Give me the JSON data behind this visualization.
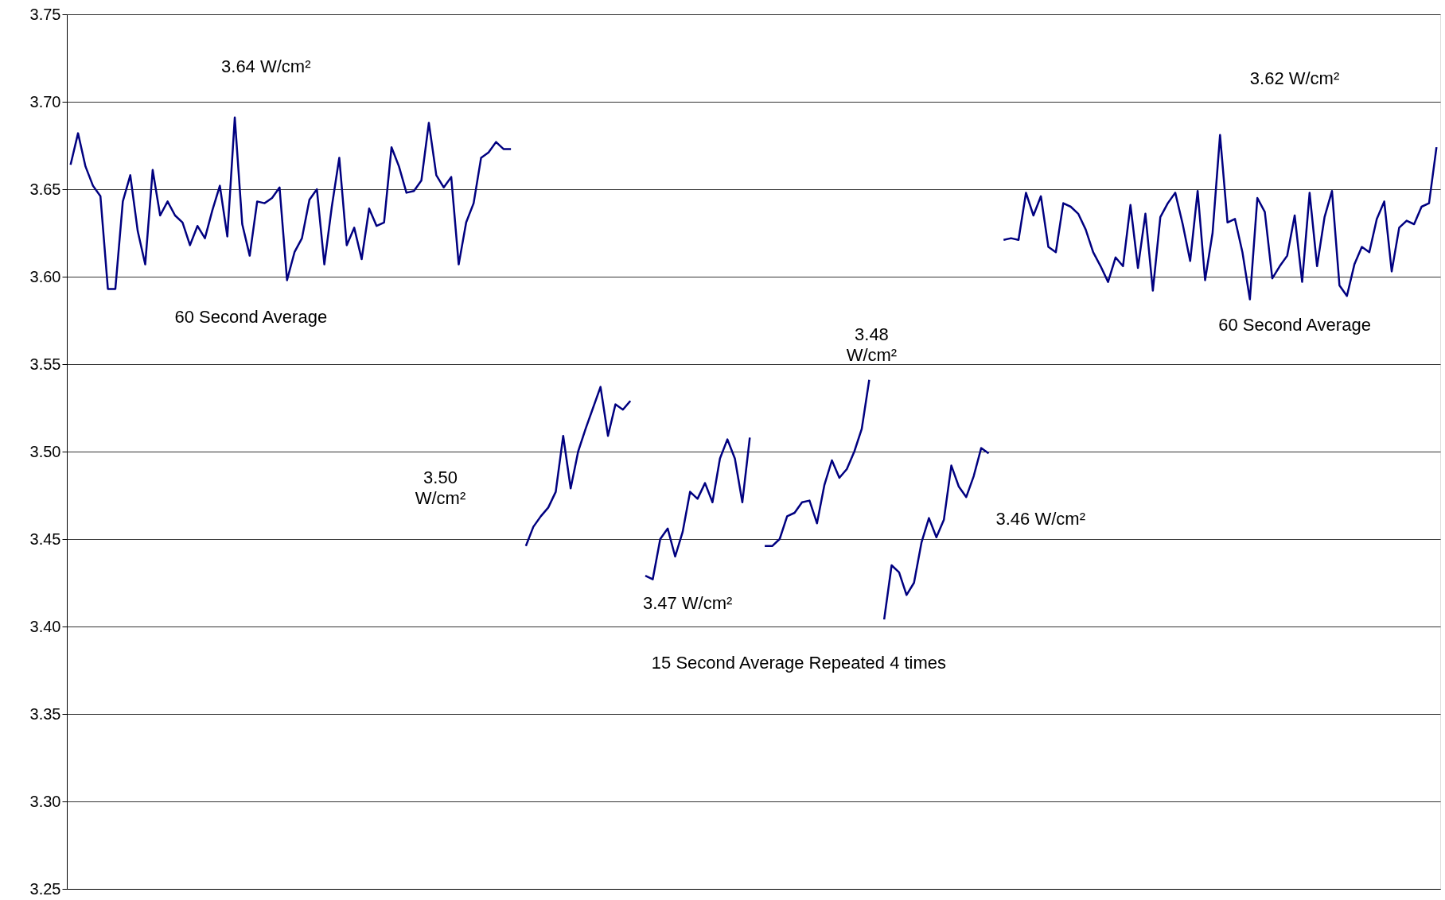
{
  "chart_data": {
    "type": "line",
    "categories": [
      null,
      null,
      null,
      null,
      null,
      null,
      null,
      null,
      null,
      null,
      null,
      null,
      null,
      null,
      null,
      null,
      null,
      null,
      null,
      null,
      null,
      null,
      null,
      null,
      null,
      null,
      null,
      null,
      null,
      null,
      null,
      null,
      null,
      null,
      null,
      null,
      null,
      null,
      null,
      null,
      null,
      null,
      null,
      null,
      null,
      null,
      null,
      null,
      null,
      null,
      null,
      null,
      null,
      null,
      null,
      null,
      null,
      null,
      null,
      null,
      null,
      null,
      null,
      null,
      null,
      null,
      null,
      null,
      null,
      null,
      null,
      null,
      null,
      null,
      null,
      null,
      null,
      null,
      null,
      null,
      null,
      null,
      null,
      null,
      null,
      null,
      null,
      null,
      null,
      null,
      null,
      null,
      null,
      null,
      null,
      null,
      null,
      null,
      null,
      null,
      null,
      null,
      null,
      null,
      null,
      null,
      null,
      null,
      null,
      null,
      null,
      null,
      null,
      null,
      null,
      null,
      null,
      null,
      null,
      null,
      null,
      null,
      null,
      null,
      null,
      null,
      null,
      null,
      null,
      null,
      null,
      null,
      null,
      null,
      null,
      null,
      null,
      null,
      null,
      null,
      null,
      null,
      null,
      null,
      null,
      null,
      null,
      null,
      null,
      null,
      null,
      null,
      null,
      null,
      null,
      null,
      null,
      null,
      null,
      null,
      null,
      null,
      null,
      null,
      null,
      null,
      null,
      null,
      null,
      null,
      null,
      null,
      null,
      null,
      null,
      null,
      null,
      null,
      null,
      null,
      null,
      null,
      null,
      null
    ],
    "series": [
      {
        "color": "#000080",
        "values": [
          3.664,
          3.682,
          3.663,
          3.652,
          3.646,
          3.593,
          3.593,
          3.643,
          3.658,
          3.626,
          3.607,
          3.661,
          3.635,
          3.643,
          3.635,
          3.631,
          3.618,
          3.629,
          3.622,
          3.638,
          3.652,
          3.623,
          3.691,
          3.63,
          3.612,
          3.643,
          3.642,
          3.645,
          3.651,
          3.598,
          3.614,
          3.622,
          3.644,
          3.65,
          3.607,
          3.64,
          3.668,
          3.618,
          3.628,
          3.61,
          3.639,
          3.629,
          3.631,
          3.674,
          3.663,
          3.648,
          3.649,
          3.655,
          3.688,
          3.658,
          3.651,
          3.657,
          3.607,
          3.631,
          3.642,
          3.668,
          3.671,
          3.677,
          3.673,
          3.673,
          null,
          3.446,
          3.457,
          3.463,
          3.468,
          3.477,
          3.509,
          3.479,
          3.5,
          3.513,
          3.525,
          3.537,
          3.509,
          3.527,
          3.524,
          3.529,
          null,
          3.429,
          3.427,
          3.45,
          3.456,
          3.44,
          3.454,
          3.477,
          3.473,
          3.482,
          3.471,
          3.496,
          3.507,
          3.496,
          3.471,
          3.508,
          null,
          3.446,
          3.446,
          3.45,
          3.463,
          3.465,
          3.471,
          3.472,
          3.459,
          3.481,
          3.495,
          3.485,
          3.49,
          3.5,
          3.513,
          3.541,
          null,
          3.404,
          3.435,
          3.431,
          3.418,
          3.425,
          3.448,
          3.462,
          3.451,
          3.461,
          3.492,
          3.48,
          3.474,
          3.486,
          3.502,
          3.499,
          null,
          3.621,
          3.622,
          3.621,
          3.648,
          3.635,
          3.646,
          3.617,
          3.614,
          3.642,
          3.64,
          3.636,
          3.627,
          3.614,
          3.606,
          3.597,
          3.611,
          3.606,
          3.641,
          3.605,
          3.636,
          3.592,
          3.634,
          3.642,
          3.648,
          3.63,
          3.609,
          3.649,
          3.598,
          3.625,
          3.681,
          3.631,
          3.633,
          3.614,
          3.587,
          3.645,
          3.637,
          3.599,
          3.606,
          3.612,
          3.635,
          3.597,
          3.648,
          3.606,
          3.634,
          3.649,
          3.595,
          3.589,
          3.607,
          3.617,
          3.614,
          3.633,
          3.643,
          3.603,
          3.628,
          3.632,
          3.63,
          3.64,
          3.642,
          3.674
        ]
      }
    ],
    "ylim": [
      3.25,
      3.75
    ],
    "yticks": [
      {
        "value": 3.25,
        "label": "3.25"
      },
      {
        "value": 3.3,
        "label": "3.30"
      },
      {
        "value": 3.35,
        "label": "3.35"
      },
      {
        "value": 3.4,
        "label": "3.40"
      },
      {
        "value": 3.45,
        "label": "3.45"
      },
      {
        "value": 3.5,
        "label": "3.50"
      },
      {
        "value": 3.55,
        "label": "3.55"
      },
      {
        "value": 3.6,
        "label": "3.60"
      },
      {
        "value": 3.65,
        "label": "3.65"
      },
      {
        "value": 3.7,
        "label": "3.70"
      },
      {
        "value": 3.75,
        "label": "3.75"
      }
    ],
    "grid": "y",
    "tick_labels": "y",
    "annotations": [
      "3.64 W/cm²",
      "60 Second Average",
      "3.62 W/cm²",
      "60 Second Average",
      "3.50 W/cm²",
      "3.47 W/cm²",
      "3.48 W/cm²",
      "3.46 W/cm²",
      "15 Second Average Repeated 4 times"
    ]
  }
}
